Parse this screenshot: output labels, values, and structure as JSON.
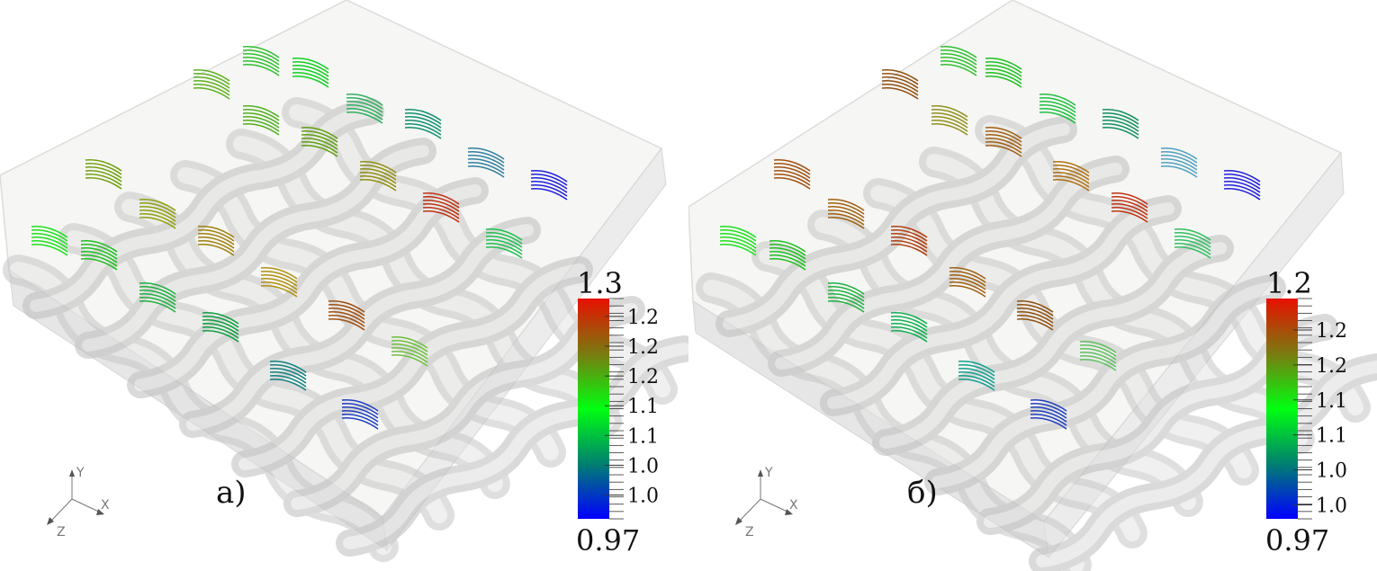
{
  "panels": [
    {
      "label": "а)",
      "colorbar": {
        "max_label": "1.3",
        "min_label": "0.97",
        "tick_labels": [
          "1.2",
          "1.2",
          "1.2",
          "1.1",
          "1.1",
          "1.0",
          "1.0"
        ],
        "colors": [
          "#e81000",
          "#7a7a10",
          "#00ff10",
          "#008070",
          "#0000ff"
        ]
      },
      "axes": {
        "x": "X",
        "y": "Y",
        "z": "Z"
      }
    },
    {
      "label": "б)",
      "colorbar": {
        "max_label": "1.2",
        "min_label": "0.97",
        "tick_labels": [
          "1.2",
          "1.2",
          "1.1",
          "1.1",
          "1.0",
          "1.0"
        ],
        "colors": [
          "#e81000",
          "#7a7a10",
          "#00ff10",
          "#008070",
          "#0000ff"
        ]
      },
      "axes": {
        "x": "X",
        "y": "Y",
        "z": "Z"
      }
    }
  ]
}
